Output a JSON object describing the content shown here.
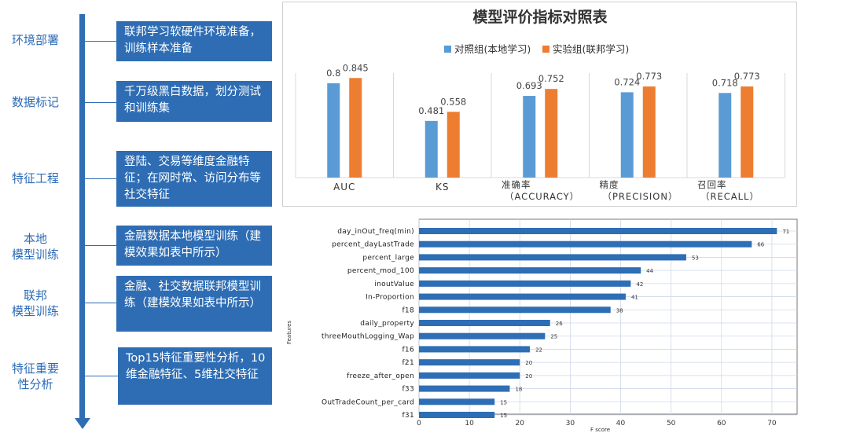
{
  "flow": {
    "steps": [
      {
        "label": "环境部署",
        "desc": "联邦学习软硬件环境准备，训练样本准备"
      },
      {
        "label": "数据标记",
        "desc": "千万级黑白数据，划分测试和训练集"
      },
      {
        "label": "特征工程",
        "desc": "登陆、交易等维度金融特征；在网时常、访问分布等社交特征"
      },
      {
        "label": "本地\n模型训练",
        "desc": "金融数据本地模型训练（建模效果如表中所示）"
      },
      {
        "label": "联邦\n模型训练",
        "desc": "金融、社交数据联邦模型训练（建模效果如表中所示）"
      },
      {
        "label": "特征重要\n性分析",
        "desc": "Top15特征重要性分析，10维金融特征、5维社交特征"
      }
    ]
  },
  "chart_data": [
    {
      "type": "bar",
      "title": "模型评价指标对照表",
      "categories": [
        "AUC",
        "KS",
        "准确率\n（ACCURACY）",
        "精度\n（PRECISION）",
        "召回率\n（RECALL）"
      ],
      "series": [
        {
          "name": "对照组(本地学习)",
          "values": [
            0.8,
            0.481,
            0.693,
            0.724,
            0.718
          ],
          "color": "#5b9bd5"
        },
        {
          "name": "实验组(联邦学习)",
          "values": [
            0.845,
            0.558,
            0.752,
            0.773,
            0.773
          ],
          "color": "#ed7d31"
        }
      ],
      "value_labels": [
        [
          "0.8",
          "0.845"
        ],
        [
          "0.481",
          "0.558"
        ],
        [
          "0.693",
          "0.752"
        ],
        [
          "0.724",
          "0.773"
        ],
        [
          "0.718",
          "0.773"
        ]
      ],
      "ylim": [
        0,
        1
      ],
      "legend": "top-center",
      "grid": false
    },
    {
      "type": "bar",
      "orientation": "horizontal",
      "categories": [
        "day_inOut_freq(min)",
        "percent_dayLastTrade",
        "percent_large",
        "percent_mod_100",
        "inoutValue",
        "In-Proportion",
        "f18",
        "daily_property",
        "threeMouthLogging_Wap",
        "f16",
        "f21",
        "freeze_after_open",
        "f33",
        "OutTradeCount_per_card",
        "f31"
      ],
      "values": [
        71,
        66,
        53,
        44,
        42,
        41,
        38,
        26,
        25,
        22,
        20,
        20,
        18,
        15,
        15
      ],
      "xlabel": "F score",
      "ylabel": "Features",
      "xlim": [
        0,
        75
      ],
      "xticks": [
        0,
        10,
        20,
        30,
        40,
        50,
        60,
        70
      ],
      "grid": true,
      "color": "#2e6eb5"
    }
  ]
}
